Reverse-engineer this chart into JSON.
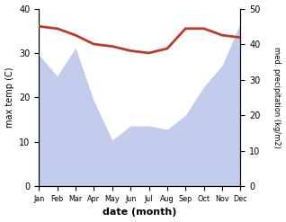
{
  "months": [
    "Jan",
    "Feb",
    "Mar",
    "Apr",
    "May",
    "Jun",
    "Jul",
    "Aug",
    "Sep",
    "Oct",
    "Nov",
    "Dec"
  ],
  "temperature": [
    36,
    35.5,
    34,
    32,
    31.5,
    30.5,
    30,
    31,
    35.5,
    35.5,
    34,
    33.5
  ],
  "precipitation": [
    370,
    310,
    390,
    240,
    130,
    170,
    170,
    160,
    200,
    280,
    340,
    460
  ],
  "temp_color": "#c0392b",
  "precip_color": "#b0bce8",
  "precip_alpha": 0.75,
  "temp_linewidth": 2.0,
  "ylim_left": [
    0,
    40
  ],
  "ylim_right": [
    0,
    500
  ],
  "xlabel": "date (month)",
  "ylabel_left": "max temp (C)",
  "ylabel_right": "med. precipitation (kg/m2)",
  "background_color": "#ffffff"
}
